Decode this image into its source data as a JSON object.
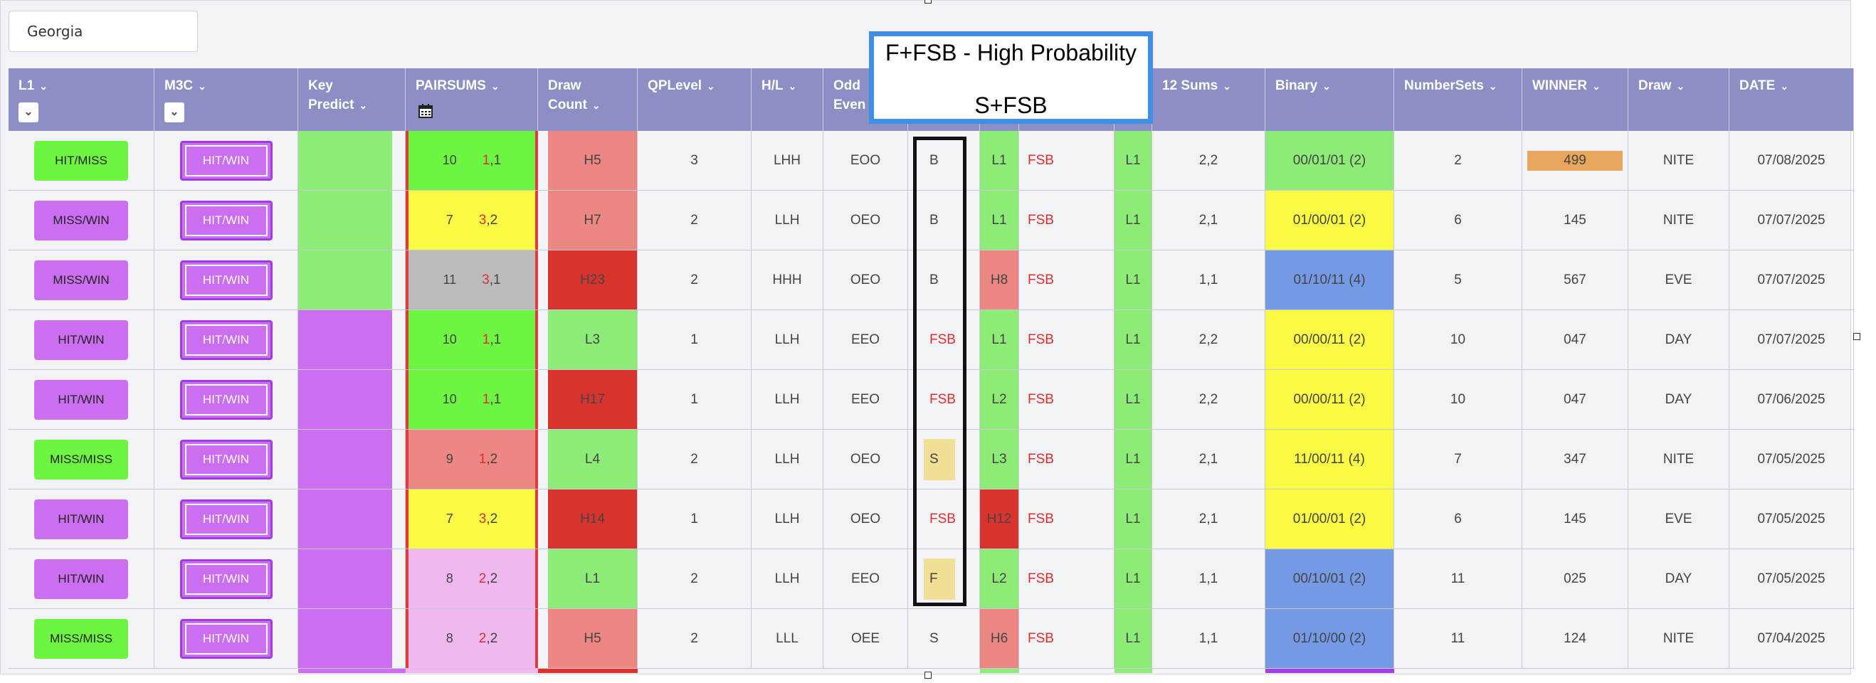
{
  "state_selector": {
    "value": "Georgia"
  },
  "columns": [
    {
      "key": "l1",
      "label": "L1",
      "sub": "",
      "has_toggle": true
    },
    {
      "key": "m3c",
      "label": "M3C",
      "sub": "",
      "has_toggle": true
    },
    {
      "key": "key_predict",
      "label": "Key",
      "sub": "Predict"
    },
    {
      "key": "pairsums",
      "label": "PAIRSUMS",
      "sub": "",
      "has_calendar": true
    },
    {
      "key": "draw_count",
      "label": "Draw",
      "sub": "Count"
    },
    {
      "key": "qplevel",
      "label": "QPLevel",
      "sub": ""
    },
    {
      "key": "hl",
      "label": "H/L",
      "sub": ""
    },
    {
      "key": "odd_even",
      "label": "Odd",
      "sub": "Even"
    },
    {
      "key": "pattern",
      "label": "",
      "sub": ""
    },
    {
      "key": "level",
      "label": "",
      "sub": ""
    },
    {
      "key": "fsb",
      "label": "",
      "sub": ""
    },
    {
      "key": "level2",
      "label": "",
      "sub": ""
    },
    {
      "key": "sums12",
      "label": "12 Sums",
      "sub": ""
    },
    {
      "key": "binary",
      "label": "Binary",
      "sub": ""
    },
    {
      "key": "numbersets",
      "label": "NumberSets",
      "sub": ""
    },
    {
      "key": "winner",
      "label": "WINNER",
      "sub": ""
    },
    {
      "key": "draw",
      "label": "Draw",
      "sub": ""
    },
    {
      "key": "date",
      "label": "DATE",
      "sub": ""
    }
  ],
  "popup": {
    "line1": "F+FSB - High Probability",
    "line2": "S+FSB"
  },
  "colors": {
    "header": "#8c8fc3",
    "green": "#6ef542",
    "light_green": "#8deb77",
    "purple": "#cc6ef0",
    "yellow": "#fbfb45",
    "gray": "#bbbbbb",
    "salmon": "#ec8783",
    "dark_red": "#d8342d",
    "pink": "#efb8ef",
    "blue": "#7499e5",
    "orange": "#e7a55e",
    "fsb_red": "#e0434e"
  },
  "rows": [
    {
      "l1": "HIT/MISS",
      "l1_color": "#6ef542",
      "m3c": "HIT/WIN",
      "kp_color": "#8deb77",
      "ps_num": "10",
      "ps_a": "1",
      "ps_b": "1",
      "ps_color": "#6ef542",
      "dc": "H5",
      "dc_color": "#ec8783",
      "qp": "3",
      "hl": "LHH",
      "oe": "EOO",
      "pat": "B",
      "pat_style": "plain",
      "lvl": "L1",
      "lvl_color": "#8deb77",
      "fsb": "FSB",
      "lvl2": "L1",
      "s12": "2,2",
      "bin": "00/01/01 (2)",
      "bin_color": "#8deb77",
      "ns": "2",
      "win": "499",
      "win_box": true,
      "draw": "NITE",
      "date": "07/08/2025"
    },
    {
      "l1": "MISS/WIN",
      "l1_color": "#cc6ef0",
      "m3c": "HIT/WIN",
      "kp_color": "#8deb77",
      "ps_num": "7",
      "ps_a": "3",
      "ps_b": "2",
      "ps_color": "#fbfb45",
      "dc": "H7",
      "dc_color": "#ec8783",
      "qp": "2",
      "hl": "LLH",
      "oe": "OEO",
      "pat": "B",
      "pat_style": "plain",
      "lvl": "L1",
      "lvl_color": "#8deb77",
      "fsb": "FSB",
      "lvl2": "L1",
      "s12": "2,1",
      "bin": "01/00/01 (2)",
      "bin_color": "#fbfb45",
      "ns": "6",
      "win": "145",
      "win_box": false,
      "draw": "NITE",
      "date": "07/07/2025"
    },
    {
      "l1": "MISS/WIN",
      "l1_color": "#cc6ef0",
      "m3c": "HIT/WIN",
      "kp_color": "#8deb77",
      "ps_num": "11",
      "ps_a": "3",
      "ps_b": "1",
      "ps_color": "#bbbbbb",
      "dc": "H23",
      "dc_color": "#d8342d",
      "qp": "2",
      "hl": "HHH",
      "oe": "OEO",
      "pat": "B",
      "pat_style": "plain",
      "lvl": "H8",
      "lvl_color": "#ec8783",
      "fsb": "FSB",
      "lvl2": "L1",
      "s12": "1,1",
      "bin": "01/10/11 (4)",
      "bin_color": "#7499e5",
      "ns": "5",
      "win": "567",
      "win_box": false,
      "draw": "EVE",
      "date": "07/07/2025"
    },
    {
      "l1": "HIT/WIN",
      "l1_color": "#cc6ef0",
      "m3c": "HIT/WIN",
      "kp_color": "#cc6ef0",
      "ps_num": "10",
      "ps_a": "1",
      "ps_b": "1",
      "ps_color": "#6ef542",
      "dc": "L3",
      "dc_color": "#8deb77",
      "qp": "1",
      "hl": "LLH",
      "oe": "EEO",
      "pat": "FSB",
      "pat_style": "red",
      "lvl": "L1",
      "lvl_color": "#8deb77",
      "fsb": "FSB",
      "lvl2": "L1",
      "s12": "2,2",
      "bin": "00/00/11 (2)",
      "bin_color": "#fbfb45",
      "ns": "10",
      "win": "047",
      "win_box": false,
      "draw": "DAY",
      "date": "07/07/2025"
    },
    {
      "l1": "HIT/WIN",
      "l1_color": "#cc6ef0",
      "m3c": "HIT/WIN",
      "kp_color": "#cc6ef0",
      "ps_num": "10",
      "ps_a": "1",
      "ps_b": "1",
      "ps_color": "#6ef542",
      "dc": "H17",
      "dc_color": "#d8342d",
      "qp": "1",
      "hl": "LLH",
      "oe": "EEO",
      "pat": "FSB",
      "pat_style": "red",
      "lvl": "L2",
      "lvl_color": "#8deb77",
      "fsb": "FSB",
      "lvl2": "L1",
      "s12": "2,2",
      "bin": "00/00/11 (2)",
      "bin_color": "#fbfb45",
      "ns": "10",
      "win": "047",
      "win_box": false,
      "draw": "DAY",
      "date": "07/06/2025"
    },
    {
      "l1": "MISS/MISS",
      "l1_color": "#6ef542",
      "m3c": "HIT/WIN",
      "kp_color": "#cc6ef0",
      "ps_num": "9",
      "ps_a": "1",
      "ps_b": "2",
      "ps_color": "#ec8783",
      "dc": "L4",
      "dc_color": "#8deb77",
      "qp": "2",
      "hl": "LLH",
      "oe": "OEO",
      "pat": "S",
      "pat_style": "box",
      "lvl": "L3",
      "lvl_color": "#8deb77",
      "fsb": "FSB",
      "lvl2": "L1",
      "s12": "2,1",
      "bin": "11/00/11 (4)",
      "bin_color": "#fbfb45",
      "ns": "7",
      "win": "347",
      "win_box": false,
      "draw": "NITE",
      "date": "07/05/2025"
    },
    {
      "l1": "HIT/WIN",
      "l1_color": "#cc6ef0",
      "m3c": "HIT/WIN",
      "kp_color": "#cc6ef0",
      "ps_num": "7",
      "ps_a": "3",
      "ps_b": "2",
      "ps_color": "#fbfb45",
      "dc": "H14",
      "dc_color": "#d8342d",
      "qp": "1",
      "hl": "LLH",
      "oe": "OEO",
      "pat": "FSB",
      "pat_style": "red",
      "lvl": "H12",
      "lvl_color": "#d8342d",
      "fsb": "FSB",
      "lvl2": "L1",
      "s12": "2,1",
      "bin": "01/00/01 (2)",
      "bin_color": "#fbfb45",
      "ns": "6",
      "win": "145",
      "win_box": false,
      "draw": "EVE",
      "date": "07/05/2025"
    },
    {
      "l1": "HIT/WIN",
      "l1_color": "#cc6ef0",
      "m3c": "HIT/WIN",
      "kp_color": "#cc6ef0",
      "ps_num": "8",
      "ps_a": "2",
      "ps_b": "2",
      "ps_color": "#efb8ef",
      "dc": "L1",
      "dc_color": "#8deb77",
      "qp": "2",
      "hl": "LLH",
      "oe": "EEO",
      "pat": "F",
      "pat_style": "box",
      "lvl": "L2",
      "lvl_color": "#8deb77",
      "fsb": "FSB",
      "lvl2": "L1",
      "s12": "1,1",
      "bin": "00/10/01 (2)",
      "bin_color": "#7499e5",
      "ns": "11",
      "win": "025",
      "win_box": false,
      "draw": "DAY",
      "date": "07/05/2025"
    },
    {
      "l1": "MISS/MISS",
      "l1_color": "#6ef542",
      "m3c": "HIT/WIN",
      "kp_color": "#cc6ef0",
      "ps_num": "8",
      "ps_a": "2",
      "ps_b": "2",
      "ps_color": "#efb8ef",
      "dc": "H5",
      "dc_color": "#ec8783",
      "qp": "2",
      "hl": "LLL",
      "oe": "OEE",
      "pat": "S",
      "pat_style": "plain",
      "lvl": "H6",
      "lvl_color": "#ec8783",
      "fsb": "FSB",
      "lvl2": "L1",
      "s12": "1,1",
      "bin": "01/10/00 (2)",
      "bin_color": "#7499e5",
      "ns": "11",
      "win": "124",
      "win_box": false,
      "draw": "NITE",
      "date": "07/04/2025"
    }
  ]
}
